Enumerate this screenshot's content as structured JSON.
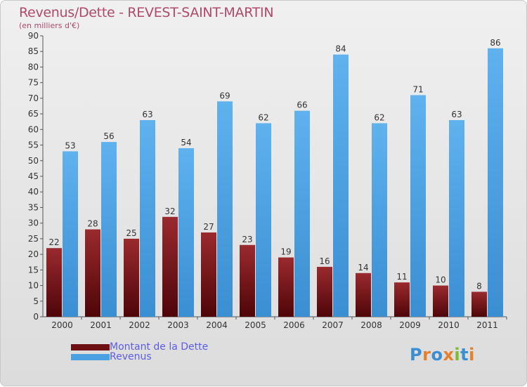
{
  "colors": {
    "dette": "#6e0f14",
    "revenus": "#4aa0e0",
    "title": "#b04a6a",
    "legend_text": "#5c5ce6"
  },
  "chart_data": {
    "type": "bar",
    "title": "Revenus/Dette - REVEST-SAINT-MARTIN",
    "subtitle": "(en milliers d'€)",
    "categories": [
      "2000",
      "2001",
      "2002",
      "2003",
      "2004",
      "2005",
      "2006",
      "2007",
      "2008",
      "2009",
      "2010",
      "2011"
    ],
    "series": [
      {
        "name": "Montant de la Dette",
        "values": [
          22,
          28,
          25,
          32,
          27,
          23,
          19,
          16,
          14,
          11,
          10,
          8
        ]
      },
      {
        "name": "Revenus",
        "values": [
          53,
          56,
          63,
          54,
          69,
          62,
          66,
          84,
          62,
          71,
          63,
          86
        ]
      }
    ],
    "ylim": [
      0,
      90
    ],
    "yticks": [
      0,
      5,
      10,
      15,
      20,
      25,
      30,
      35,
      40,
      45,
      50,
      55,
      60,
      65,
      70,
      75,
      80,
      85,
      90
    ],
    "grid": false,
    "legend_position": "bottom-left"
  },
  "logo": {
    "text": "Proxiti",
    "icon": "proxiti-logo"
  }
}
